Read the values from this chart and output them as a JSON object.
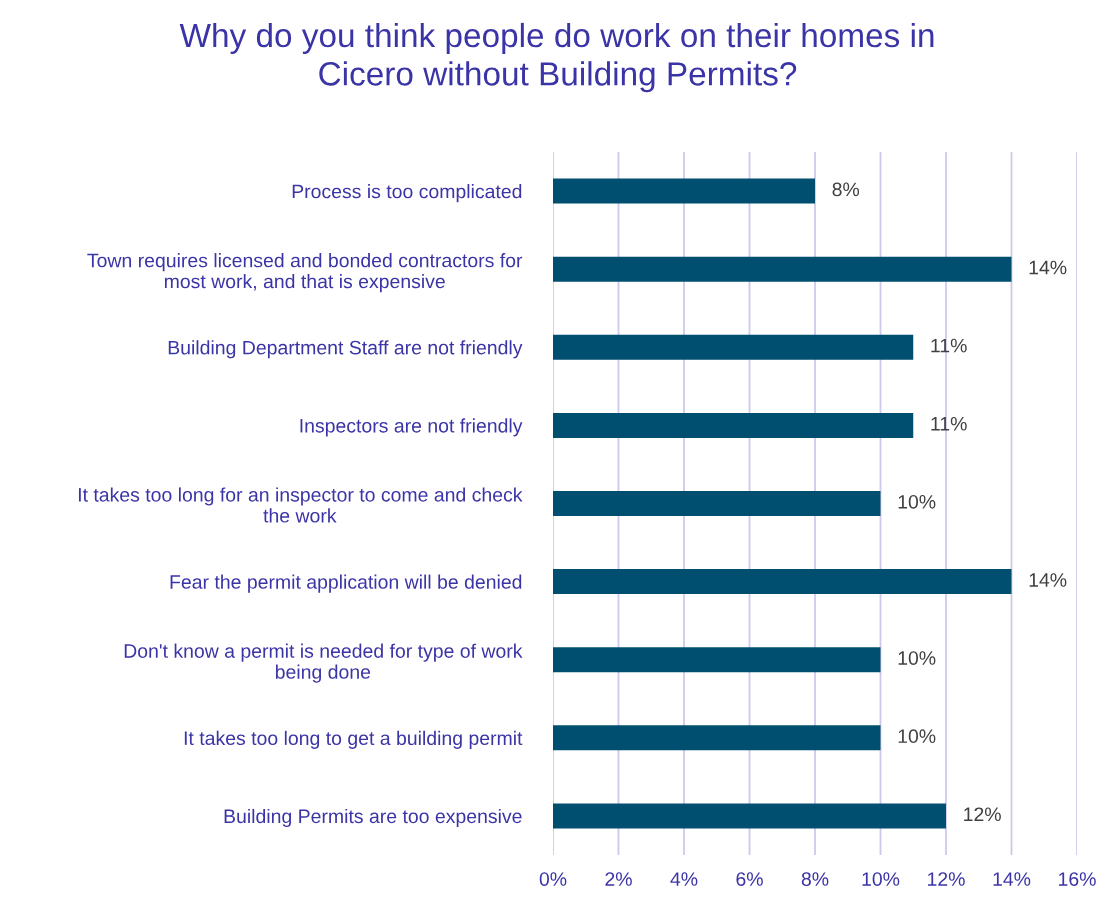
{
  "chart_data": {
    "type": "bar",
    "orientation": "horizontal",
    "title": "Why do you think people do work on their homes in\nCicero without Building Permits?",
    "categories": [
      "Process is too complicated",
      "Town requires licensed and bonded contractors for\nmost work, and that is expensive",
      "Building Department Staff are not friendly",
      "Inspectors are not friendly",
      "It takes too long for an inspector to come and check\nthe work",
      "Fear the permit application will be denied",
      "Don't know a permit is needed for type of work\nbeing done",
      "It takes too long to get a building permit",
      "Building Permits are too expensive"
    ],
    "values": [
      8,
      14,
      11,
      11,
      10,
      14,
      10,
      10,
      12
    ],
    "value_labels": [
      "8%",
      "14%",
      "11%",
      "11%",
      "10%",
      "14%",
      "10%",
      "10%",
      "12%"
    ],
    "color": "#004f71",
    "xlim": [
      0,
      16
    ],
    "xticks": [
      {
        "value": 0,
        "label": "0%"
      },
      {
        "value": 2,
        "label": "2%"
      },
      {
        "value": 4,
        "label": "4%"
      },
      {
        "value": 6,
        "label": "6%"
      },
      {
        "value": 8,
        "label": "8%"
      },
      {
        "value": 10,
        "label": "10%"
      },
      {
        "value": 12,
        "label": "12%"
      },
      {
        "value": 14,
        "label": "14%"
      },
      {
        "value": 16,
        "label": "16%"
      }
    ],
    "grid": "x",
    "legend": false
  }
}
